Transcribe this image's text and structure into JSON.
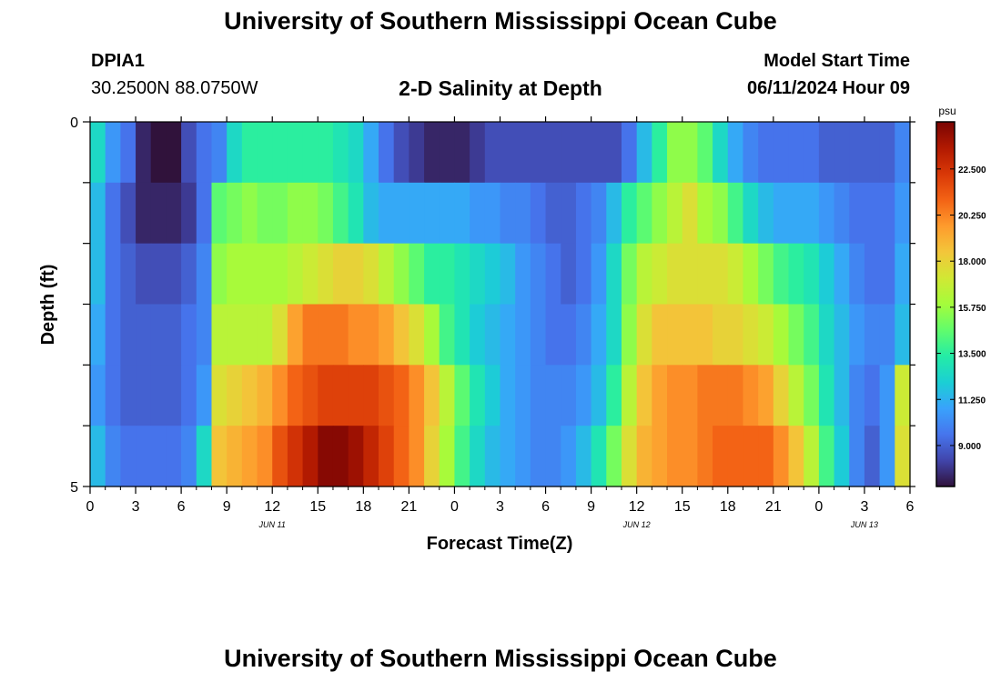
{
  "header": {
    "title": "University of Southern Mississippi Ocean Cube",
    "station_id": "DPIA1",
    "coordinates": "30.2500N  88.0750W",
    "chart_title": "2-D Salinity at Depth",
    "model_start_label": "Model Start Time",
    "model_start_value": "06/11/2024 Hour 09"
  },
  "footer": {
    "title": "University of Southern Mississippi Ocean Cube"
  },
  "chart_data": {
    "type": "heatmap",
    "title": "2-D Salinity at Depth",
    "xlabel": "Forecast Time(Z)",
    "ylabel": "Depth (ft)",
    "x_ticks": [
      "0",
      "3",
      "6",
      "9",
      "12",
      "15",
      "18",
      "21",
      "0",
      "3",
      "6",
      "9",
      "12",
      "15",
      "18",
      "21",
      "0",
      "3",
      "6"
    ],
    "date_labels": [
      {
        "label": "JUN 11",
        "hour_index": 12
      },
      {
        "label": "JUN 12",
        "hour_index": 36
      },
      {
        "label": "JUN 13",
        "hour_index": 51
      }
    ],
    "y_ticks": [
      "0",
      "5"
    ],
    "ylim": [
      0,
      5
    ],
    "x_hours": 54,
    "depth_layers": 5,
    "colorbar": {
      "unit": "psu",
      "ticks": [
        "22.500",
        "20.250",
        "18.000",
        "15.750",
        "13.500",
        "11.250",
        "9.000"
      ],
      "tick_values": [
        22.5,
        20.25,
        18.0,
        15.75,
        13.5,
        11.25,
        9.0
      ],
      "min": 7.0,
      "max": 24.8,
      "colors": [
        "#30123b",
        "#4145ab",
        "#4675ed",
        "#39a2fc",
        "#1bcfd4",
        "#24eca6",
        "#61fc6c",
        "#a4fc3b",
        "#d1e834",
        "#f3c63a",
        "#fe9b2d",
        "#f36315",
        "#d93807",
        "#b11901",
        "#7a0403"
      ]
    },
    "salinity": [
      [
        12.5,
        10.5,
        9.5,
        7.5,
        7.0,
        7.0,
        8.5,
        9.5,
        10.0,
        12.5,
        13.5,
        13.5,
        13.5,
        13.5,
        13.5,
        13.5,
        13.0,
        12.5,
        11.0,
        9.5,
        8.5,
        8.0,
        7.5,
        7.5,
        7.5,
        8.0,
        8.5,
        8.5,
        8.5,
        8.5,
        8.5,
        8.5,
        8.5,
        8.5,
        8.5,
        9.5,
        11.5,
        13.5,
        15.5,
        15.5,
        14.5,
        12.5,
        11.0,
        10.0,
        9.5,
        9.5,
        9.5,
        9.5,
        9.0,
        9.0,
        9.0,
        9.0,
        9.0,
        10.0
      ],
      [
        11.5,
        9.5,
        8.5,
        7.5,
        7.5,
        7.5,
        8.0,
        9.5,
        14.5,
        15.0,
        15.5,
        15.0,
        15.0,
        15.5,
        15.5,
        15.0,
        14.0,
        13.0,
        11.5,
        11.0,
        11.0,
        11.0,
        11.0,
        11.0,
        11.0,
        10.5,
        10.5,
        10.0,
        10.0,
        9.5,
        9.0,
        9.0,
        9.5,
        10.0,
        11.5,
        13.5,
        14.5,
        15.5,
        16.5,
        17.5,
        16.0,
        15.5,
        14.0,
        12.5,
        11.5,
        11.0,
        11.0,
        11.0,
        10.5,
        10.0,
        9.5,
        9.5,
        9.5,
        10.5
      ],
      [
        11.5,
        9.5,
        9.0,
        8.5,
        8.5,
        8.5,
        9.0,
        10.0,
        15.5,
        16.0,
        16.0,
        16.0,
        16.0,
        16.5,
        17.0,
        17.5,
        18.0,
        18.0,
        17.5,
        16.5,
        15.5,
        14.5,
        13.5,
        13.5,
        13.0,
        12.5,
        12.0,
        11.5,
        10.5,
        10.0,
        9.5,
        9.0,
        9.5,
        10.5,
        12.5,
        15.0,
        16.5,
        17.0,
        17.5,
        17.5,
        17.5,
        17.5,
        17.0,
        16.0,
        15.0,
        14.0,
        13.5,
        13.0,
        12.0,
        11.0,
        10.0,
        9.5,
        9.5,
        11.0
      ],
      [
        11.0,
        9.5,
        9.0,
        9.0,
        9.0,
        9.0,
        9.5,
        10.0,
        16.5,
        16.5,
        16.5,
        16.5,
        17.5,
        19.5,
        20.5,
        20.5,
        20.5,
        20.0,
        20.0,
        19.5,
        18.5,
        17.5,
        16.0,
        14.0,
        13.0,
        12.0,
        11.5,
        11.0,
        10.5,
        10.0,
        9.5,
        9.5,
        10.0,
        11.0,
        12.5,
        15.5,
        17.5,
        18.5,
        18.5,
        18.5,
        18.5,
        18.0,
        18.0,
        17.5,
        17.0,
        16.0,
        15.0,
        14.0,
        12.5,
        11.5,
        10.5,
        10.0,
        10.0,
        11.5
      ],
      [
        10.5,
        9.5,
        9.0,
        9.0,
        9.0,
        9.0,
        9.5,
        10.5,
        17.5,
        18.0,
        18.5,
        19.0,
        20.0,
        21.0,
        21.5,
        22.0,
        22.0,
        22.0,
        22.0,
        21.5,
        21.0,
        20.0,
        18.5,
        16.5,
        14.5,
        13.0,
        12.0,
        11.0,
        10.5,
        10.0,
        10.0,
        10.0,
        10.5,
        11.5,
        13.5,
        16.5,
        18.5,
        19.5,
        20.0,
        20.0,
        20.5,
        20.5,
        20.5,
        20.0,
        19.5,
        18.0,
        16.5,
        15.0,
        13.0,
        11.5,
        10.0,
        9.5,
        10.5,
        17.0
      ],
      [
        11.5,
        10.0,
        9.5,
        9.5,
        9.5,
        9.5,
        10.0,
        12.5,
        18.5,
        19.0,
        19.5,
        20.0,
        21.5,
        22.5,
        23.5,
        24.5,
        24.5,
        24.0,
        23.0,
        22.0,
        21.0,
        20.0,
        18.0,
        16.0,
        14.0,
        12.5,
        11.5,
        11.0,
        10.5,
        10.0,
        10.0,
        10.5,
        11.5,
        13.0,
        15.0,
        17.5,
        19.0,
        19.5,
        20.0,
        20.0,
        20.5,
        21.0,
        21.0,
        21.0,
        21.0,
        20.0,
        18.5,
        16.5,
        14.0,
        12.0,
        10.0,
        9.0,
        10.5,
        17.5
      ]
    ]
  }
}
